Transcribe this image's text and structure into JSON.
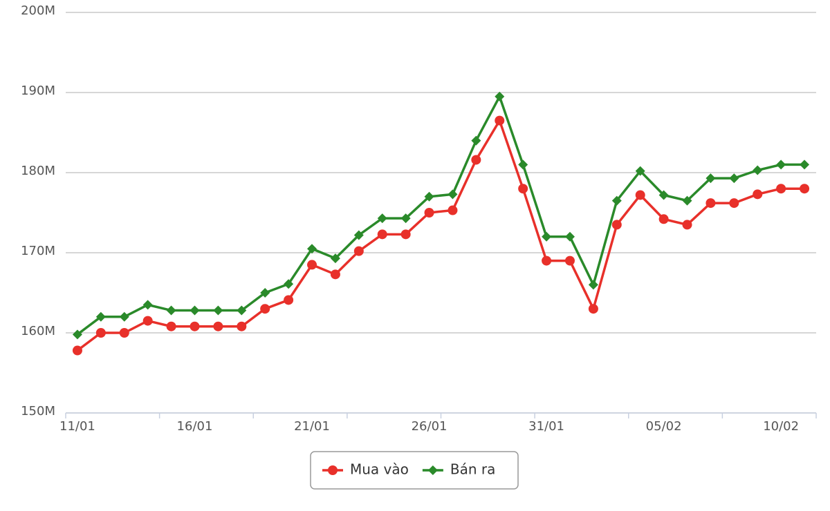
{
  "chart_data": {
    "type": "line",
    "categories": [
      "11/01",
      null,
      null,
      null,
      null,
      "16/01",
      null,
      null,
      null,
      null,
      "21/01",
      null,
      null,
      null,
      null,
      "26/01",
      null,
      null,
      null,
      null,
      "31/01",
      null,
      null,
      null,
      null,
      "05/02",
      null,
      null,
      null,
      null,
      "10/02",
      null
    ],
    "series": [
      {
        "name": "Mua vào",
        "color": "#e8302a",
        "marker": "circle",
        "values": [
          157.8,
          160,
          160,
          161.5,
          160.8,
          160.8,
          160.8,
          160.8,
          163,
          164.1,
          168.5,
          167.3,
          170.2,
          172.3,
          172.3,
          175,
          175.3,
          181.6,
          186.5,
          178,
          169,
          169,
          163,
          173.5,
          177.2,
          174.2,
          173.5,
          176.2,
          176.2,
          177.3,
          178,
          178
        ]
      },
      {
        "name": "Bán ra",
        "color": "#2a8a2a",
        "marker": "diamond",
        "values": [
          159.8,
          162,
          162,
          163.5,
          162.8,
          162.8,
          162.8,
          162.8,
          165,
          166.1,
          170.5,
          169.3,
          172.2,
          174.3,
          174.3,
          177,
          177.3,
          184,
          189.5,
          181,
          172,
          172,
          166,
          176.5,
          180.2,
          177.2,
          176.5,
          179.3,
          179.3,
          180.3,
          181,
          181
        ]
      }
    ],
    "ylim": [
      150,
      200
    ],
    "yticks": [
      {
        "value": 150,
        "label": "150M"
      },
      {
        "value": 160,
        "label": "160M"
      },
      {
        "value": 170,
        "label": "170M"
      },
      {
        "value": 180,
        "label": "180M"
      },
      {
        "value": 190,
        "label": "190M"
      },
      {
        "value": 200,
        "label": "200M"
      }
    ],
    "grid": true,
    "legend": "bottom"
  }
}
